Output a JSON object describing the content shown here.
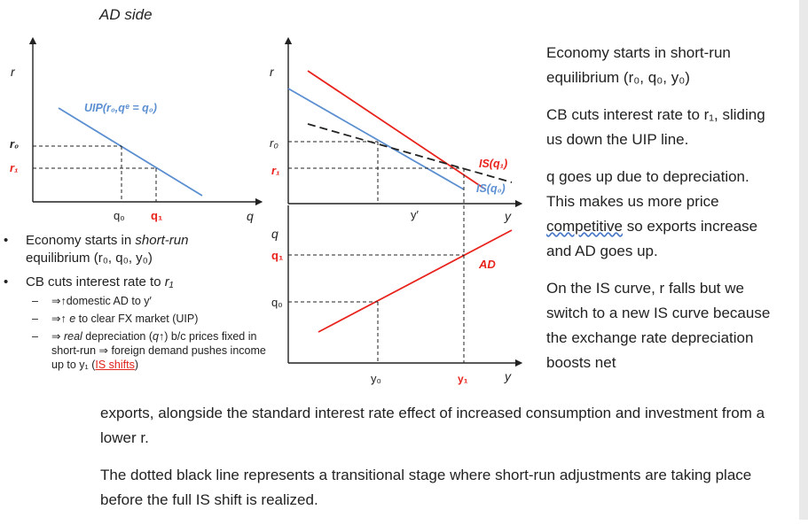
{
  "title": "AD side",
  "left_graph": {
    "y_axis": "r",
    "x_axis": "q",
    "line_label": "UIP(r₀,qᵉ = q₀)",
    "r0": "r₀",
    "r1": "r₁",
    "q0": "q₀",
    "q1": "q₁"
  },
  "is_graph": {
    "y_axis": "r",
    "x_axis": "y",
    "r0": "r₀",
    "r1": "r₁",
    "y_prime": "y′",
    "is_q1": "IS(q₁)",
    "is_q0": "IS(q₀)"
  },
  "ad_graph": {
    "y_axis": "q",
    "x_axis": "y",
    "q0": "q₀",
    "q1": "q₁",
    "y0": "y₀",
    "y1": "y₁",
    "ad": "AD"
  },
  "bullets": {
    "b1_a": "Economy starts in ",
    "b1_i": "short-run",
    "b1_b": "equilibrium (r₀, q₀, y₀)",
    "b2_a": "CB cuts interest rate to ",
    "b2_i": "r₁",
    "s1": "⇒↑domestic AD to y′",
    "s2_a": "⇒↑ ",
    "s2_i": "e",
    "s2_b": " to clear FX market (UIP)",
    "s3_a": "⇒ ",
    "s3_i": "real",
    "s3_b": " depreciation (",
    "s3_q": "q",
    "s3_c": "↑) b/c prices fixed in short-run ⇒ foreign demand pushes income up to y₁ (",
    "s3_link": "IS shifts",
    "s3_d": ")"
  },
  "right_text": {
    "p1": "Economy starts in short-run equilibrium (r₀, q₀, y₀)",
    "p2": "CB cuts interest rate to r₁, sliding us down the UIP line.",
    "p3_a": "q goes up due to depreciation. This makes us more price ",
    "p3_w": "competitive",
    "p3_b": " so exports increase and AD goes up.",
    "p4": "On the IS curve, r falls but we switch to a new IS curve because the exchange rate depreciation boosts net"
  },
  "bottom_text": {
    "p1": "exports, alongside the standard interest rate effect of increased consumption and investment from a lower r.",
    "p2": "The dotted black line represents a transitional stage where short-run adjustments are taking place before the full IS shift is realized."
  },
  "colors": {
    "blue": "#5b8fd1",
    "red": "#e8231c",
    "axis": "#222222"
  }
}
